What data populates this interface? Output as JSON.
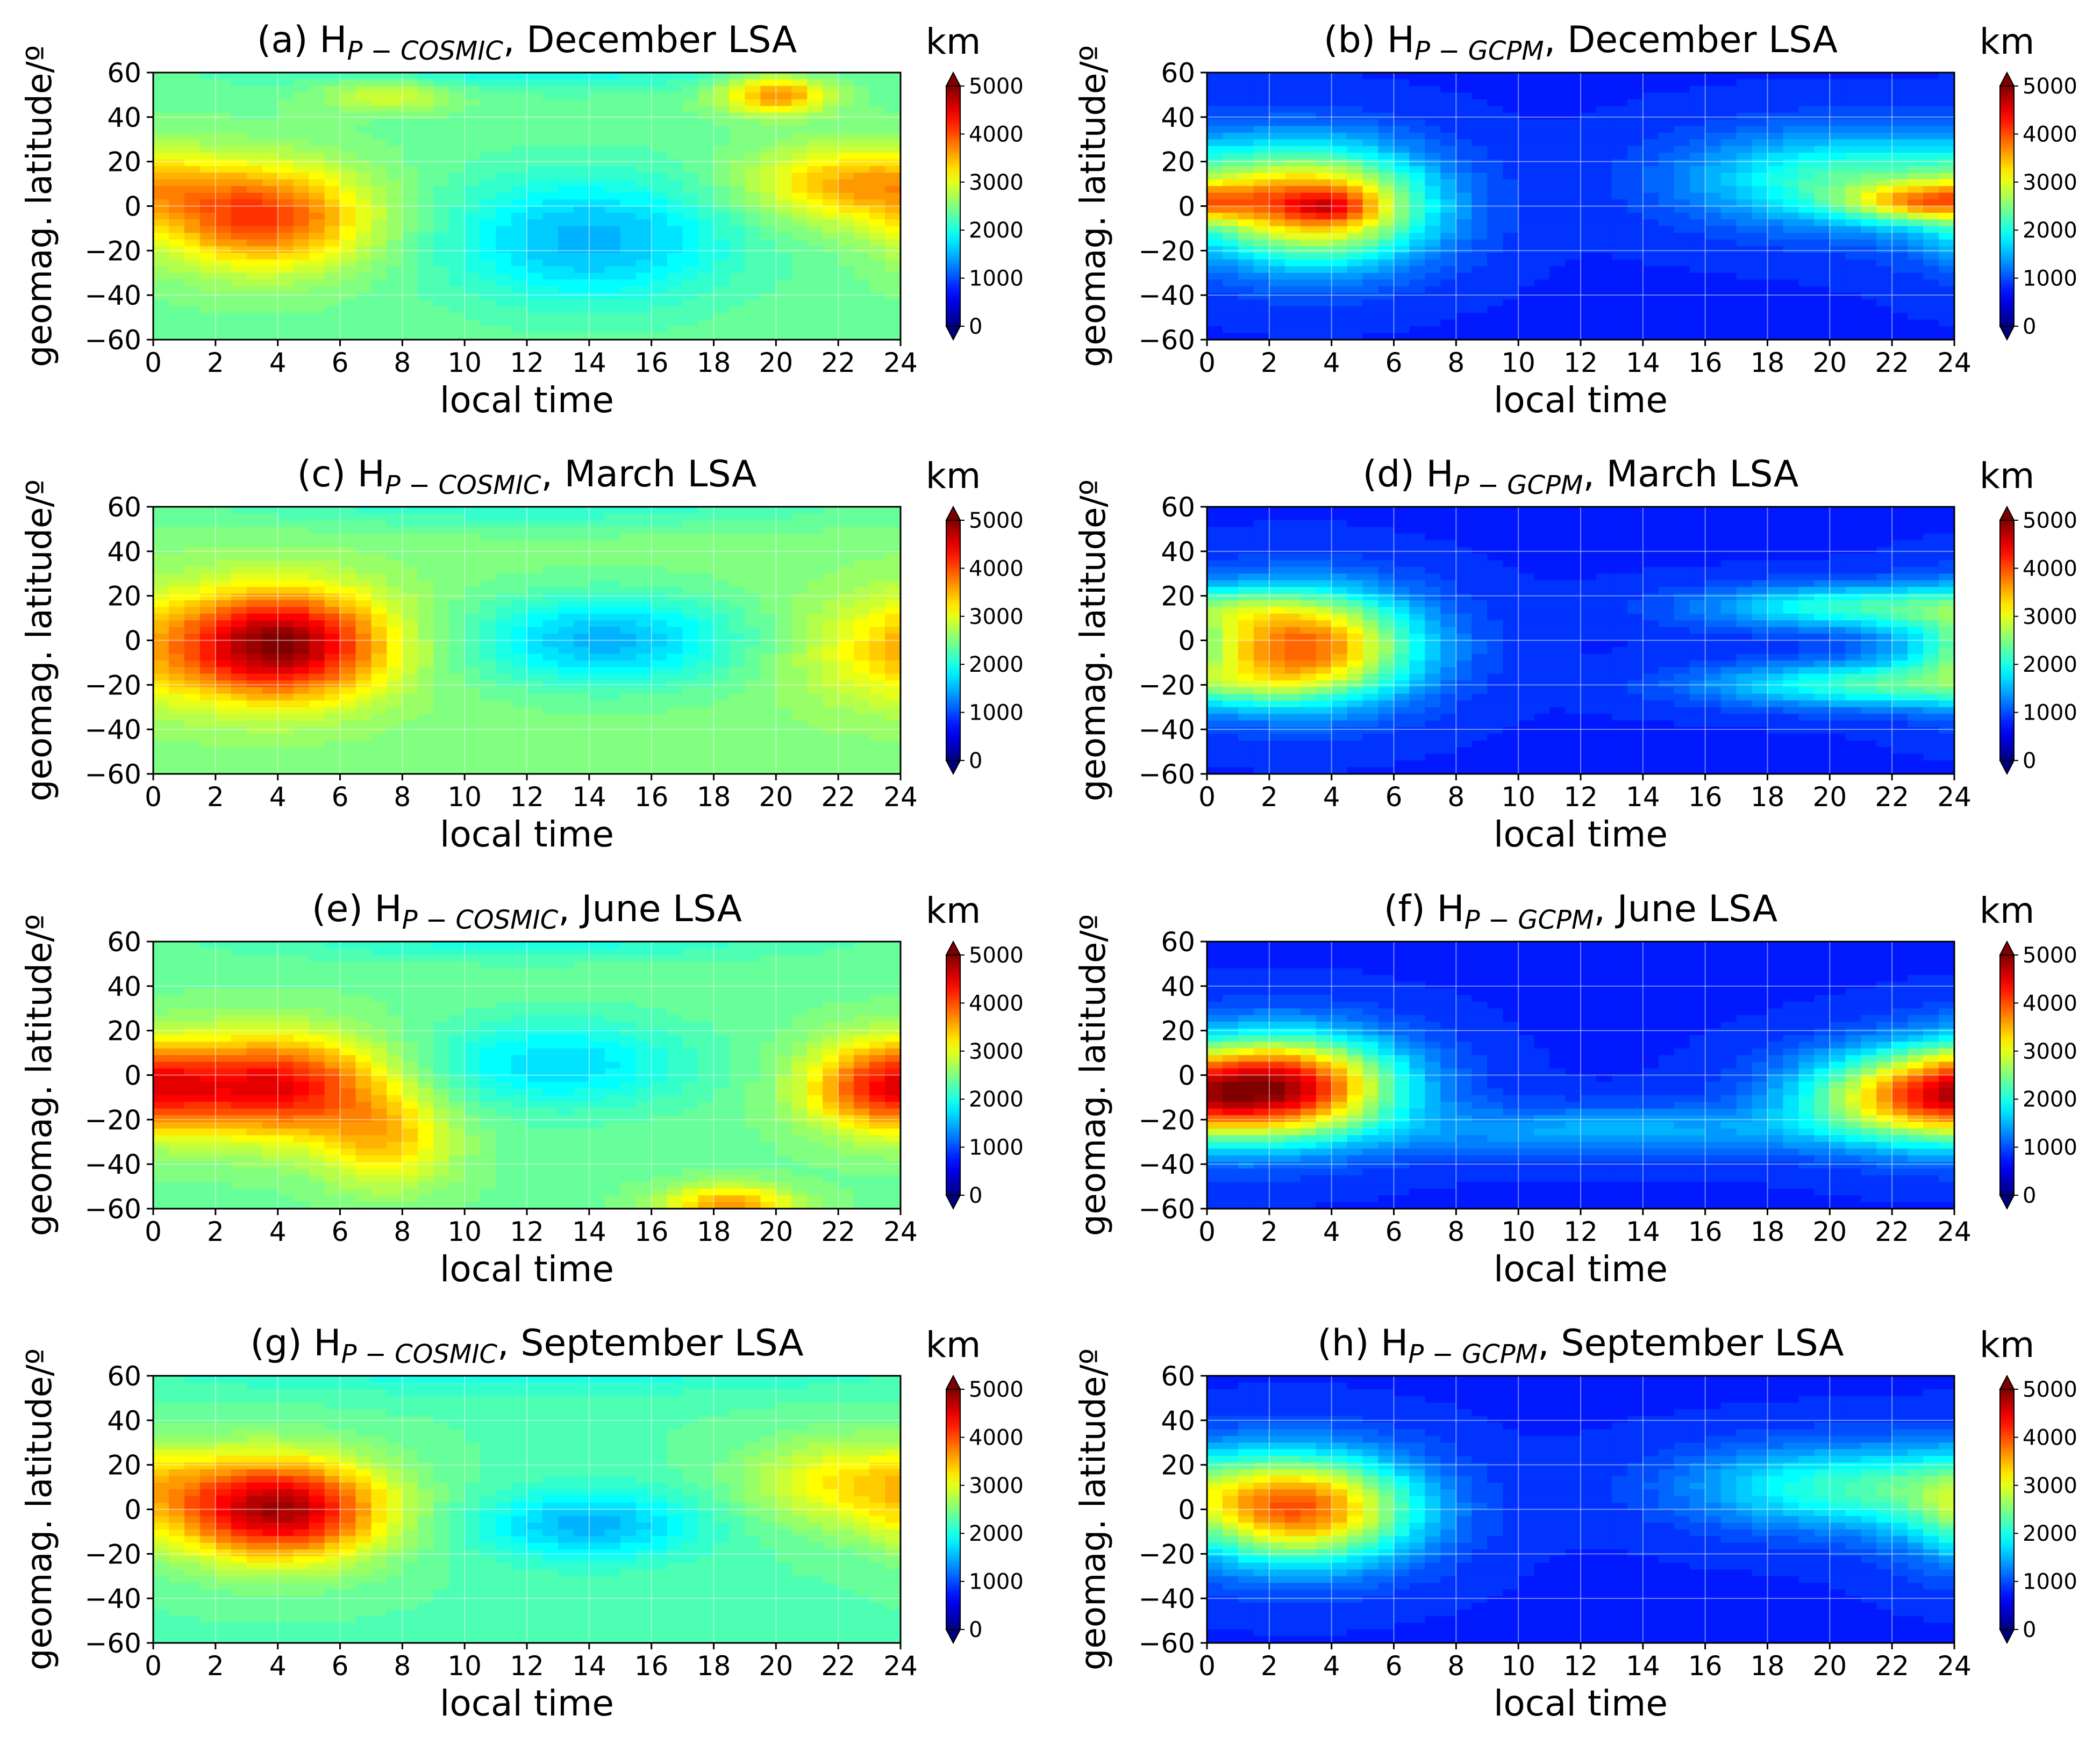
{
  "colorbar": {
    "unit": "km",
    "ticks": [
      "0",
      "1000",
      "2000",
      "3000",
      "4000",
      "5000"
    ],
    "vmin": 0,
    "vmax": 5000,
    "colormap": [
      "#00007f",
      "#0000ff",
      "#007fff",
      "#00ffff",
      "#7fff7f",
      "#ffff00",
      "#ff7f00",
      "#ff0000",
      "#7f0000"
    ]
  },
  "chart_data": [
    {
      "type": "heatmap",
      "label": "(a)",
      "title_pre": "(a) H",
      "title_sub": "P − COSMIC",
      "title_post": ", December LSA",
      "xlabel": "local time",
      "ylabel": "geomag. latitude/º",
      "x_ticks": [
        "0",
        "2",
        "4",
        "6",
        "8",
        "10",
        "12",
        "14",
        "16",
        "18",
        "20",
        "22",
        "24"
      ],
      "y_ticks": [
        "60",
        "40",
        "20",
        "0",
        "−20",
        "−40",
        "−60"
      ],
      "xlim": [
        0,
        24
      ],
      "ylim": [
        -60,
        60
      ],
      "grid": true,
      "background": 2400,
      "blobs": [
        {
          "lt": 3.5,
          "lat": -5,
          "slt": 2.4,
          "slat": 16,
          "amp": 1700
        },
        {
          "lt": 14.0,
          "lat": -15,
          "slt": 3.2,
          "slat": 20,
          "amp": -900
        },
        {
          "lt": 22.5,
          "lat": 10,
          "slt": 2.4,
          "slat": 12,
          "amp": 1100
        },
        {
          "lt": 20.0,
          "lat": 50,
          "slt": 1.2,
          "slat": 6,
          "amp": 1300
        },
        {
          "lt": 7.5,
          "lat": 50,
          "slt": 1.5,
          "slat": 5,
          "amp": 600
        },
        {
          "lt": 12.0,
          "lat": 60,
          "slt": 6.0,
          "slat": 6,
          "amp": -400
        }
      ]
    },
    {
      "type": "heatmap",
      "label": "(b)",
      "title_pre": "(b) H",
      "title_sub": "P − GCPM",
      "title_post": ", December LSA",
      "xlabel": "local time",
      "ylabel": "geomag. latitude/º",
      "x_ticks": [
        "0",
        "2",
        "4",
        "6",
        "8",
        "10",
        "12",
        "14",
        "16",
        "18",
        "20",
        "22",
        "24"
      ],
      "y_ticks": [
        "60",
        "40",
        "20",
        "0",
        "−20",
        "−40",
        "−60"
      ],
      "xlim": [
        0,
        24
      ],
      "ylim": [
        -60,
        60
      ],
      "grid": true,
      "background": 800,
      "blobs": [
        {
          "lt": 3.5,
          "lat": 0,
          "slt": 2.6,
          "slat": 18,
          "amp": 2900
        },
        {
          "lt": 4.0,
          "lat": 0,
          "slt": 1.0,
          "slat": 5,
          "amp": 800
        },
        {
          "lt": 20.5,
          "lat": 12,
          "slt": 3.5,
          "slat": 15,
          "amp": 1400
        },
        {
          "lt": 23.0,
          "lat": 2,
          "slt": 1.8,
          "slat": 6,
          "amp": 1600
        }
      ]
    },
    {
      "type": "heatmap",
      "label": "(c)",
      "title_pre": "(c) H",
      "title_sub": "P − COSMIC",
      "title_post": ", March LSA",
      "xlabel": "local time",
      "ylabel": "geomag. latitude/º",
      "x_ticks": [
        "0",
        "2",
        "4",
        "6",
        "8",
        "10",
        "12",
        "14",
        "16",
        "18",
        "20",
        "22",
        "24"
      ],
      "y_ticks": [
        "60",
        "40",
        "20",
        "0",
        "−20",
        "−40",
        "−60"
      ],
      "xlim": [
        0,
        24
      ],
      "ylim": [
        -60,
        60
      ],
      "grid": true,
      "background": 2500,
      "blobs": [
        {
          "lt": 4.0,
          "lat": -2,
          "slt": 2.4,
          "slat": 17,
          "amp": 2500
        },
        {
          "lt": 14.5,
          "lat": 0,
          "slt": 3.0,
          "slat": 14,
          "amp": -1000
        },
        {
          "lt": 23.0,
          "lat": -5,
          "slt": 2.0,
          "slat": 18,
          "amp": 500
        },
        {
          "lt": 12.0,
          "lat": 60,
          "slt": 8.0,
          "slat": 7,
          "amp": -400
        }
      ]
    },
    {
      "type": "heatmap",
      "label": "(d)",
      "title_pre": "(d) H",
      "title_sub": "P − GCPM",
      "title_post": ", March LSA",
      "xlabel": "local time",
      "ylabel": "geomag. latitude/º",
      "x_ticks": [
        "0",
        "2",
        "4",
        "6",
        "8",
        "10",
        "12",
        "14",
        "16",
        "18",
        "20",
        "22",
        "24"
      ],
      "y_ticks": [
        "60",
        "40",
        "20",
        "0",
        "−20",
        "−40",
        "−60"
      ],
      "xlim": [
        0,
        24
      ],
      "ylim": [
        -60,
        60
      ],
      "grid": true,
      "background": 800,
      "blobs": [
        {
          "lt": 3.0,
          "lat": -3,
          "slt": 2.6,
          "slat": 17,
          "amp": 3100
        },
        {
          "lt": 21.0,
          "lat": 15,
          "slt": 3.5,
          "slat": 7,
          "amp": 1300
        },
        {
          "lt": 21.0,
          "lat": -20,
          "slt": 3.5,
          "slat": 7,
          "amp": 1300
        }
      ]
    },
    {
      "type": "heatmap",
      "label": "(e)",
      "title_pre": "(e) H",
      "title_sub": "P − COSMIC",
      "title_post": ", June LSA",
      "xlabel": "local time",
      "ylabel": "geomag. latitude/º",
      "x_ticks": [
        "0",
        "2",
        "4",
        "6",
        "8",
        "10",
        "12",
        "14",
        "16",
        "18",
        "20",
        "22",
        "24"
      ],
      "y_ticks": [
        "60",
        "40",
        "20",
        "0",
        "−20",
        "−40",
        "−60"
      ],
      "xlim": [
        0,
        24
      ],
      "ylim": [
        -60,
        60
      ],
      "grid": true,
      "background": 2400,
      "blobs": [
        {
          "lt": 4.0,
          "lat": -5,
          "slt": 2.4,
          "slat": 16,
          "amp": 2000
        },
        {
          "lt": 7.5,
          "lat": -30,
          "slt": 1.5,
          "slat": 15,
          "amp": 900
        },
        {
          "lt": 23.5,
          "lat": -5,
          "slt": 1.8,
          "slat": 14,
          "amp": 1700
        },
        {
          "lt": 18.5,
          "lat": -58,
          "slt": 1.5,
          "slat": 6,
          "amp": 1200
        },
        {
          "lt": 13.0,
          "lat": 5,
          "slt": 3.0,
          "slat": 14,
          "amp": -700
        },
        {
          "lt": 12.0,
          "lat": 60,
          "slt": 6.0,
          "slat": 6,
          "amp": -400
        }
      ]
    },
    {
      "type": "heatmap",
      "label": "(f)",
      "title_pre": "(f) H",
      "title_sub": "P − GCPM",
      "title_post": ", June LSA",
      "xlabel": "local time",
      "ylabel": "geomag. latitude/º",
      "x_ticks": [
        "0",
        "2",
        "4",
        "6",
        "8",
        "10",
        "12",
        "14",
        "16",
        "18",
        "20",
        "22",
        "24"
      ],
      "y_ticks": [
        "60",
        "40",
        "20",
        "0",
        "−20",
        "−40",
        "−60"
      ],
      "xlim": [
        0,
        24
      ],
      "ylim": [
        -60,
        60
      ],
      "grid": true,
      "background": 800,
      "blobs": [
        {
          "lt": 2.5,
          "lat": -5,
          "slt": 2.6,
          "slat": 16,
          "amp": 3400
        },
        {
          "lt": 22.5,
          "lat": -10,
          "slt": 2.6,
          "slat": 14,
          "amp": 2300
        },
        {
          "lt": 13.0,
          "lat": -25,
          "slt": 5.0,
          "slat": 8,
          "amp": 700
        }
      ]
    },
    {
      "type": "heatmap",
      "label": "(g)",
      "title_pre": "(g) H",
      "title_sub": "P − COSMIC",
      "title_post": ", September LSA",
      "xlabel": "local time",
      "ylabel": "geomag. latitude/º",
      "x_ticks": [
        "0",
        "2",
        "4",
        "6",
        "8",
        "10",
        "12",
        "14",
        "16",
        "18",
        "20",
        "22",
        "24"
      ],
      "y_ticks": [
        "60",
        "40",
        "20",
        "0",
        "−20",
        "−40",
        "−60"
      ],
      "xlim": [
        0,
        24
      ],
      "ylim": [
        -60,
        60
      ],
      "grid": true,
      "background": 2300,
      "blobs": [
        {
          "lt": 4.0,
          "lat": 0,
          "slt": 2.4,
          "slat": 16,
          "amp": 2500
        },
        {
          "lt": 22.5,
          "lat": 12,
          "slt": 2.4,
          "slat": 14,
          "amp": 900
        },
        {
          "lt": 14.0,
          "lat": -7,
          "slt": 2.5,
          "slat": 11,
          "amp": -800
        },
        {
          "lt": 12.0,
          "lat": 60,
          "slt": 8.0,
          "slat": 6,
          "amp": -300
        }
      ]
    },
    {
      "type": "heatmap",
      "label": "(h)",
      "title_pre": "(h) H",
      "title_sub": "P − GCPM",
      "title_post": ", September LSA",
      "xlabel": "local time",
      "ylabel": "geomag. latitude/º",
      "x_ticks": [
        "0",
        "2",
        "4",
        "6",
        "8",
        "10",
        "12",
        "14",
        "16",
        "18",
        "20",
        "22",
        "24"
      ],
      "y_ticks": [
        "60",
        "40",
        "20",
        "0",
        "−20",
        "−40",
        "−60"
      ],
      "xlim": [
        0,
        24
      ],
      "ylim": [
        -60,
        60
      ],
      "grid": true,
      "background": 800,
      "blobs": [
        {
          "lt": 3.0,
          "lat": 0,
          "slt": 2.6,
          "slat": 17,
          "amp": 3000
        },
        {
          "lt": 20.5,
          "lat": 10,
          "slt": 3.5,
          "slat": 13,
          "amp": 1300
        }
      ]
    }
  ]
}
